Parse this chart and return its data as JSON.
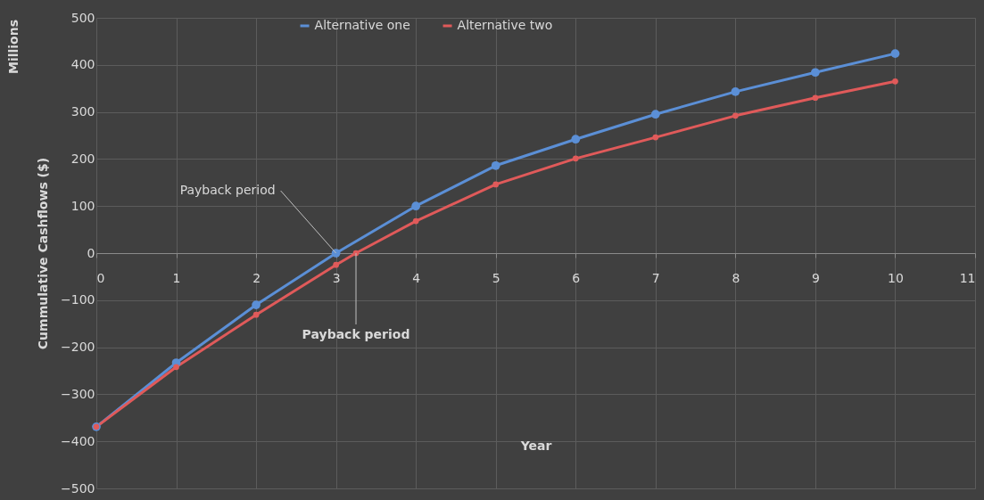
{
  "chart_data": {
    "type": "line",
    "xlabel": "Year",
    "ylabel": "Cummulative Cashflows ($)",
    "xlim": [
      0,
      11
    ],
    "xticks": [
      0,
      1,
      2,
      3,
      4,
      5,
      6,
      7,
      8,
      9,
      10,
      11
    ],
    "ylim": [
      -500,
      500
    ],
    "yticks": [
      -500,
      -400,
      -300,
      -200,
      -100,
      0,
      100,
      200,
      300,
      400,
      500
    ],
    "series": [
      {
        "name": "Alternative one",
        "color": "#5b8fd6",
        "x": [
          0,
          1,
          2,
          3,
          4,
          5,
          6,
          7,
          8,
          9,
          10
        ],
        "values": [
          -369,
          -233,
          -110,
          0,
          100,
          186,
          242,
          295,
          343,
          384,
          424
        ]
      },
      {
        "name": "Alternative two",
        "color": "#e05a5a",
        "x": [
          0,
          1,
          2,
          3,
          3.25,
          4,
          5,
          6,
          7,
          8,
          9,
          10
        ],
        "values": [
          -369,
          -242,
          -131,
          -25,
          0,
          68,
          146,
          201,
          246,
          292,
          330,
          365
        ]
      }
    ],
    "annotations": [
      {
        "text": "Payback period",
        "x": 3,
        "y": 0
      },
      {
        "text": "Payback period",
        "x": 3.25,
        "y": 0
      },
      "Millions"
    ],
    "grid": true,
    "legend": "top",
    "marker": "circle",
    "line_style": "solid"
  }
}
